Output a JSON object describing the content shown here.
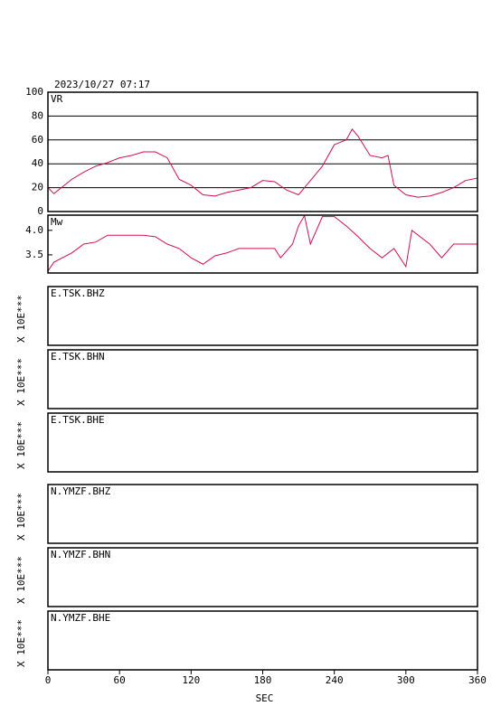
{
  "chart_data": [
    {
      "type": "line",
      "title": "2023/10/27 07:17",
      "panel_label": "VR",
      "x": [
        0,
        5,
        20,
        30,
        40,
        50,
        60,
        70,
        80,
        90,
        100,
        110,
        120,
        130,
        140,
        150,
        160,
        170,
        180,
        190,
        200,
        210,
        220,
        230,
        240,
        250,
        255,
        260,
        270,
        280,
        285,
        290,
        300,
        310,
        320,
        330,
        340,
        350,
        360
      ],
      "series": [
        {
          "color": "#d0104c",
          "values": [
            20,
            15,
            27,
            33,
            38,
            41,
            45,
            47,
            50,
            50,
            45,
            27,
            22,
            14,
            13,
            16,
            18,
            20,
            26,
            25,
            18,
            14,
            26,
            38,
            56,
            60,
            69,
            63,
            47,
            45,
            47,
            22,
            14,
            12,
            13,
            16,
            20,
            26,
            28
          ]
        }
      ],
      "xlim": [
        0,
        360
      ],
      "ylim": [
        0,
        100
      ],
      "yticks": [
        0,
        20,
        40,
        60,
        80,
        100
      ],
      "grid": true
    },
    {
      "type": "line",
      "panel_label": "Mw",
      "x": [
        0,
        5,
        20,
        30,
        40,
        50,
        60,
        70,
        80,
        90,
        100,
        110,
        120,
        130,
        140,
        150,
        160,
        170,
        180,
        190,
        195,
        205,
        210,
        215,
        220,
        230,
        240,
        250,
        260,
        270,
        280,
        290,
        300,
        305,
        320,
        330,
        340,
        360
      ],
      "series": [
        {
          "color": "#d0104c",
          "values": [
            3.17,
            3.35,
            3.54,
            3.72,
            3.76,
            3.9,
            3.9,
            3.9,
            3.9,
            3.87,
            3.72,
            3.63,
            3.44,
            3.31,
            3.48,
            3.54,
            3.63,
            3.63,
            3.63,
            3.63,
            3.44,
            3.72,
            4.09,
            4.3,
            3.72,
            4.28,
            4.28,
            4.09,
            3.87,
            3.63,
            3.44,
            3.63,
            3.26,
            4.0,
            3.72,
            3.44,
            3.72,
            3.72
          ]
        }
      ],
      "xlim": [
        0,
        360
      ],
      "ylim": [
        3.13,
        4.31
      ],
      "yticks": [
        3.5,
        {
          "value": 4,
          "label": "4.0"
        }
      ]
    },
    {
      "type": "line",
      "panel_label": "E.TSK.BHZ",
      "ylabel": "X 10E***",
      "xlim": [
        0,
        360
      ]
    },
    {
      "type": "line",
      "panel_label": "E.TSK.BHN",
      "ylabel": "X 10E***",
      "xlim": [
        0,
        360
      ]
    },
    {
      "type": "line",
      "panel_label": "E.TSK.BHE",
      "ylabel": "X 10E***",
      "xlim": [
        0,
        360
      ]
    },
    {
      "type": "line",
      "panel_label": "N.YMZF.BHZ",
      "ylabel": "X 10E***",
      "xlim": [
        0,
        360
      ]
    },
    {
      "type": "line",
      "panel_label": "N.YMZF.BHN",
      "ylabel": "X 10E***",
      "xlim": [
        0,
        360
      ]
    },
    {
      "type": "line",
      "panel_label": "N.YMZF.BHE",
      "ylabel": "X 10E***",
      "xlim": [
        0,
        360
      ],
      "xticks": [
        0,
        60,
        120,
        180,
        240,
        300,
        360
      ],
      "xlabel": "SEC"
    }
  ]
}
